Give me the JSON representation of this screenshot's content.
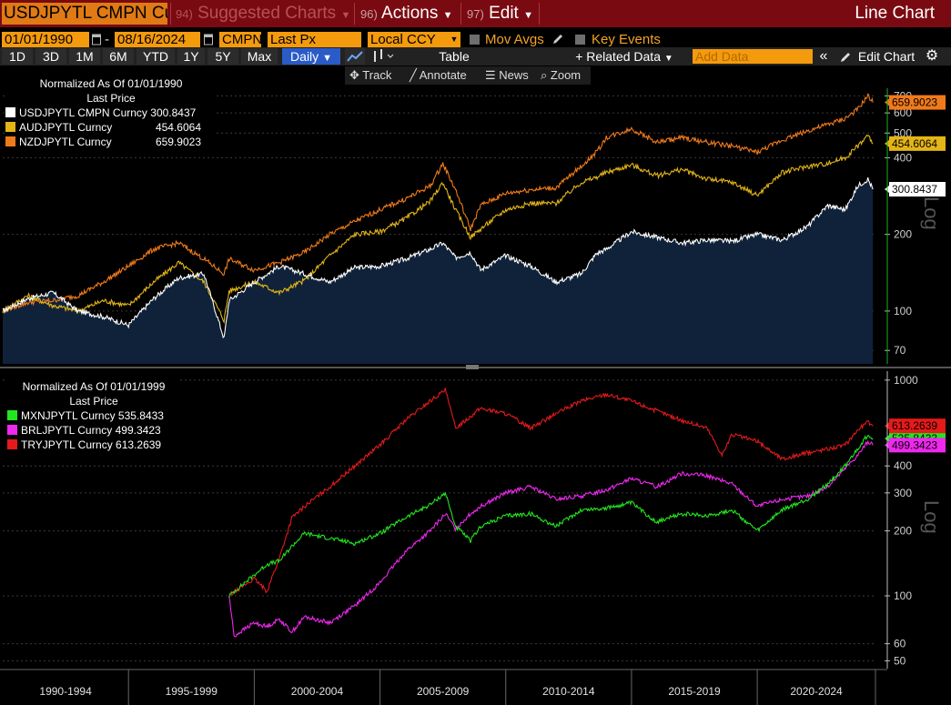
{
  "toolbar": {
    "ticker": "USDJPYTL CMPN Cur",
    "menu_suggested_num": "94)",
    "menu_suggested": "Suggested Charts",
    "menu_actions_num": "96)",
    "menu_actions": "Actions",
    "menu_edit_num": "97)",
    "menu_edit": "Edit",
    "chart_kind": "Line Chart"
  },
  "settings": {
    "start_date": "01/01/1990",
    "date_sep": "-",
    "end_date": "08/16/2024",
    "source": "CMPN",
    "field": "Last Px",
    "currency": "Local CCY",
    "mov_avgs": "Mov Avgs",
    "key_events": "Key Events"
  },
  "periods": [
    "1D",
    "3D",
    "1M",
    "6M",
    "YTD",
    "1Y",
    "5Y",
    "Max"
  ],
  "frequency": "Daily",
  "row3": {
    "table": "Table",
    "related_data": "+ Related Data",
    "add_data_placeholder": "Add Data",
    "edit_chart": "Edit Chart"
  },
  "row4": {
    "track": "Track",
    "annotate": "Annotate",
    "news": "News",
    "zoom": "Zoom"
  },
  "colors": {
    "usd": "#ffffff",
    "aud": "#e3b517",
    "nzd": "#f07a1a",
    "mxn": "#22e51f",
    "brl": "#ee28ee",
    "try": "#e51a1a",
    "area": "#0f2239",
    "axis_green": "#19b31f"
  },
  "chart_data": [
    {
      "type": "line",
      "scale": "log",
      "legend_title": "Normalized As Of 01/01/1990",
      "legend_subtitle": "Last Price",
      "legend_position": "top-left",
      "y_ticks": [
        70,
        100,
        200,
        400,
        500,
        600,
        700
      ],
      "ylim": [
        62,
        750
      ],
      "xlim": [
        1990,
        2024.7
      ],
      "axis_caption": "Log",
      "series": [
        {
          "name": "USDJPYTL CMPN Curncy",
          "last": "300.8437",
          "color": "usd",
          "area": true,
          "points": [
            [
              1990,
              100
            ],
            [
              1991,
              112
            ],
            [
              1992,
              118
            ],
            [
              1993,
              100
            ],
            [
              1994,
              95
            ],
            [
              1995,
              88
            ],
            [
              1996,
              112
            ],
            [
              1997,
              135
            ],
            [
              1998,
              140
            ],
            [
              1998.8,
              78
            ],
            [
              1999,
              110
            ],
            [
              2000,
              130
            ],
            [
              2001,
              150
            ],
            [
              2002,
              140
            ],
            [
              2003,
              130
            ],
            [
              2004,
              148
            ],
            [
              2005,
              150
            ],
            [
              2006,
              160
            ],
            [
              2007,
              175
            ],
            [
              2007.5,
              185
            ],
            [
              2008,
              162
            ],
            [
              2008.6,
              170
            ],
            [
              2009,
              145
            ],
            [
              2010,
              165
            ],
            [
              2011,
              150
            ],
            [
              2012,
              130
            ],
            [
              2013,
              140
            ],
            [
              2013.6,
              168
            ],
            [
              2014,
              175
            ],
            [
              2015,
              205
            ],
            [
              2016,
              195
            ],
            [
              2017,
              185
            ],
            [
              2018,
              190
            ],
            [
              2019,
              188
            ],
            [
              2020,
              200
            ],
            [
              2021,
              190
            ],
            [
              2022,
              215
            ],
            [
              2022.8,
              260
            ],
            [
              2023.5,
              250
            ],
            [
              2024,
              310
            ],
            [
              2024.4,
              330
            ],
            [
              2024.6,
              300.8437
            ]
          ]
        },
        {
          "name": "AUDJPYTL Curncy",
          "last": "454.6064",
          "color": "aud",
          "points": [
            [
              1990,
              100
            ],
            [
              1991,
              115
            ],
            [
              1992,
              105
            ],
            [
              1993,
              100
            ],
            [
              1994,
              110
            ],
            [
              1995,
              105
            ],
            [
              1996,
              130
            ],
            [
              1997,
              155
            ],
            [
              1998,
              130
            ],
            [
              1998.8,
              92
            ],
            [
              1999,
              120
            ],
            [
              2000,
              130
            ],
            [
              2001,
              118
            ],
            [
              2002,
              132
            ],
            [
              2003,
              165
            ],
            [
              2004,
              200
            ],
            [
              2005,
              205
            ],
            [
              2006,
              230
            ],
            [
              2007,
              270
            ],
            [
              2007.5,
              320
            ],
            [
              2008,
              250
            ],
            [
              2008.6,
              195
            ],
            [
              2009,
              210
            ],
            [
              2010,
              250
            ],
            [
              2011,
              265
            ],
            [
              2012,
              265
            ],
            [
              2013,
              320
            ],
            [
              2013.6,
              335
            ],
            [
              2014,
              350
            ],
            [
              2015,
              375
            ],
            [
              2016,
              340
            ],
            [
              2017,
              360
            ],
            [
              2018,
              330
            ],
            [
              2019,
              320
            ],
            [
              2020,
              285
            ],
            [
              2021,
              350
            ],
            [
              2022,
              370
            ],
            [
              2022.8,
              380
            ],
            [
              2023.5,
              400
            ],
            [
              2024,
              445
            ],
            [
              2024.4,
              490
            ],
            [
              2024.6,
              454.6064
            ]
          ]
        },
        {
          "name": "NZDJPYTL Curncy",
          "last": "659.9023",
          "color": "nzd",
          "points": [
            [
              1990,
              100
            ],
            [
              1991,
              108
            ],
            [
              1992,
              110
            ],
            [
              1993,
              115
            ],
            [
              1994,
              130
            ],
            [
              1995,
              150
            ],
            [
              1996,
              175
            ],
            [
              1997,
              185
            ],
            [
              1998,
              160
            ],
            [
              1998.8,
              140
            ],
            [
              1999,
              160
            ],
            [
              2000,
              145
            ],
            [
              2001,
              155
            ],
            [
              2002,
              170
            ],
            [
              2003,
              200
            ],
            [
              2004,
              225
            ],
            [
              2005,
              250
            ],
            [
              2006,
              275
            ],
            [
              2007,
              310
            ],
            [
              2007.5,
              380
            ],
            [
              2008,
              300
            ],
            [
              2008.6,
              210
            ],
            [
              2009,
              260
            ],
            [
              2010,
              290
            ],
            [
              2011,
              300
            ],
            [
              2012,
              305
            ],
            [
              2013,
              370
            ],
            [
              2013.6,
              420
            ],
            [
              2014,
              480
            ],
            [
              2015,
              520
            ],
            [
              2016,
              460
            ],
            [
              2017,
              480
            ],
            [
              2018,
              460
            ],
            [
              2019,
              445
            ],
            [
              2020,
              420
            ],
            [
              2021,
              470
            ],
            [
              2022,
              510
            ],
            [
              2022.8,
              540
            ],
            [
              2023.5,
              570
            ],
            [
              2024,
              620
            ],
            [
              2024.4,
              700
            ],
            [
              2024.6,
              659.9023
            ]
          ]
        }
      ]
    },
    {
      "type": "line",
      "scale": "log",
      "legend_title": "Normalized As Of 01/01/1999",
      "legend_subtitle": "Last Price",
      "legend_position": "top-left",
      "y_ticks": [
        50,
        60,
        100,
        200,
        300,
        400,
        1000
      ],
      "ylim": [
        46,
        1100
      ],
      "xlim": [
        1990,
        2024.7
      ],
      "axis_caption": "Log",
      "x_labels": [
        "1990-1994",
        "1995-1999",
        "2000-2004",
        "2005-2009",
        "2010-2014",
        "2015-2019",
        "2020-2024"
      ],
      "series": [
        {
          "name": "MXNJPYTL Curncy",
          "last": "535.8433",
          "color": "mxn",
          "points": [
            [
              1999,
              100
            ],
            [
              1999.5,
              112
            ],
            [
              2000,
              125
            ],
            [
              2000.5,
              140
            ],
            [
              2001,
              145
            ],
            [
              2001.5,
              170
            ],
            [
              2002,
              195
            ],
            [
              2003,
              185
            ],
            [
              2004,
              175
            ],
            [
              2005,
              195
            ],
            [
              2006,
              230
            ],
            [
              2007,
              265
            ],
            [
              2007.6,
              300
            ],
            [
              2008,
              210
            ],
            [
              2008.6,
              180
            ],
            [
              2009,
              210
            ],
            [
              2010,
              235
            ],
            [
              2011,
              240
            ],
            [
              2012,
              210
            ],
            [
              2013,
              250
            ],
            [
              2014,
              255
            ],
            [
              2015,
              270
            ],
            [
              2016,
              220
            ],
            [
              2017,
              240
            ],
            [
              2018,
              235
            ],
            [
              2019,
              250
            ],
            [
              2020,
              200
            ],
            [
              2021,
              250
            ],
            [
              2022,
              280
            ],
            [
              2022.8,
              330
            ],
            [
              2023.5,
              400
            ],
            [
              2024,
              480
            ],
            [
              2024.4,
              560
            ],
            [
              2024.6,
              535.8433
            ]
          ]
        },
        {
          "name": "BRLJPYTL Curncy",
          "last": "499.3423",
          "color": "brl",
          "points": [
            [
              1999,
              100
            ],
            [
              1999.2,
              65
            ],
            [
              1999.6,
              70
            ],
            [
              2000,
              75
            ],
            [
              2000.5,
              72
            ],
            [
              2001,
              78
            ],
            [
              2001.5,
              68
            ],
            [
              2002,
              80
            ],
            [
              2003,
              75
            ],
            [
              2004,
              90
            ],
            [
              2005,
              115
            ],
            [
              2006,
              160
            ],
            [
              2007,
              200
            ],
            [
              2007.6,
              240
            ],
            [
              2008,
              205
            ],
            [
              2008.6,
              240
            ],
            [
              2009,
              260
            ],
            [
              2010,
              300
            ],
            [
              2011,
              320
            ],
            [
              2012,
              280
            ],
            [
              2013,
              290
            ],
            [
              2014,
              310
            ],
            [
              2015,
              350
            ],
            [
              2016,
              320
            ],
            [
              2017,
              370
            ],
            [
              2018,
              360
            ],
            [
              2019,
              330
            ],
            [
              2020,
              260
            ],
            [
              2021,
              280
            ],
            [
              2022,
              290
            ],
            [
              2022.8,
              320
            ],
            [
              2023.5,
              390
            ],
            [
              2024,
              450
            ],
            [
              2024.4,
              520
            ],
            [
              2024.6,
              499.3423
            ]
          ]
        },
        {
          "name": "TRYJPYTL Curncy",
          "last": "613.2639",
          "color": "try",
          "points": [
            [
              1999,
              100
            ],
            [
              1999.5,
              110
            ],
            [
              2000,
              120
            ],
            [
              2000.5,
              105
            ],
            [
              2001,
              150
            ],
            [
              2001.5,
              230
            ],
            [
              2002,
              260
            ],
            [
              2003,
              320
            ],
            [
              2004,
              400
            ],
            [
              2005,
              500
            ],
            [
              2006,
              650
            ],
            [
              2007,
              800
            ],
            [
              2007.6,
              900
            ],
            [
              2008,
              600
            ],
            [
              2008.6,
              680
            ],
            [
              2009,
              740
            ],
            [
              2010,
              700
            ],
            [
              2011,
              600
            ],
            [
              2012,
              700
            ],
            [
              2013,
              800
            ],
            [
              2014,
              860
            ],
            [
              2015,
              800
            ],
            [
              2016,
              720
            ],
            [
              2017,
              650
            ],
            [
              2018,
              600
            ],
            [
              2018.6,
              450
            ],
            [
              2019,
              560
            ],
            [
              2020,
              520
            ],
            [
              2021,
              430
            ],
            [
              2022,
              460
            ],
            [
              2022.8,
              480
            ],
            [
              2023.5,
              500
            ],
            [
              2024,
              590
            ],
            [
              2024.4,
              640
            ],
            [
              2024.6,
              613.2639
            ]
          ]
        }
      ]
    }
  ]
}
